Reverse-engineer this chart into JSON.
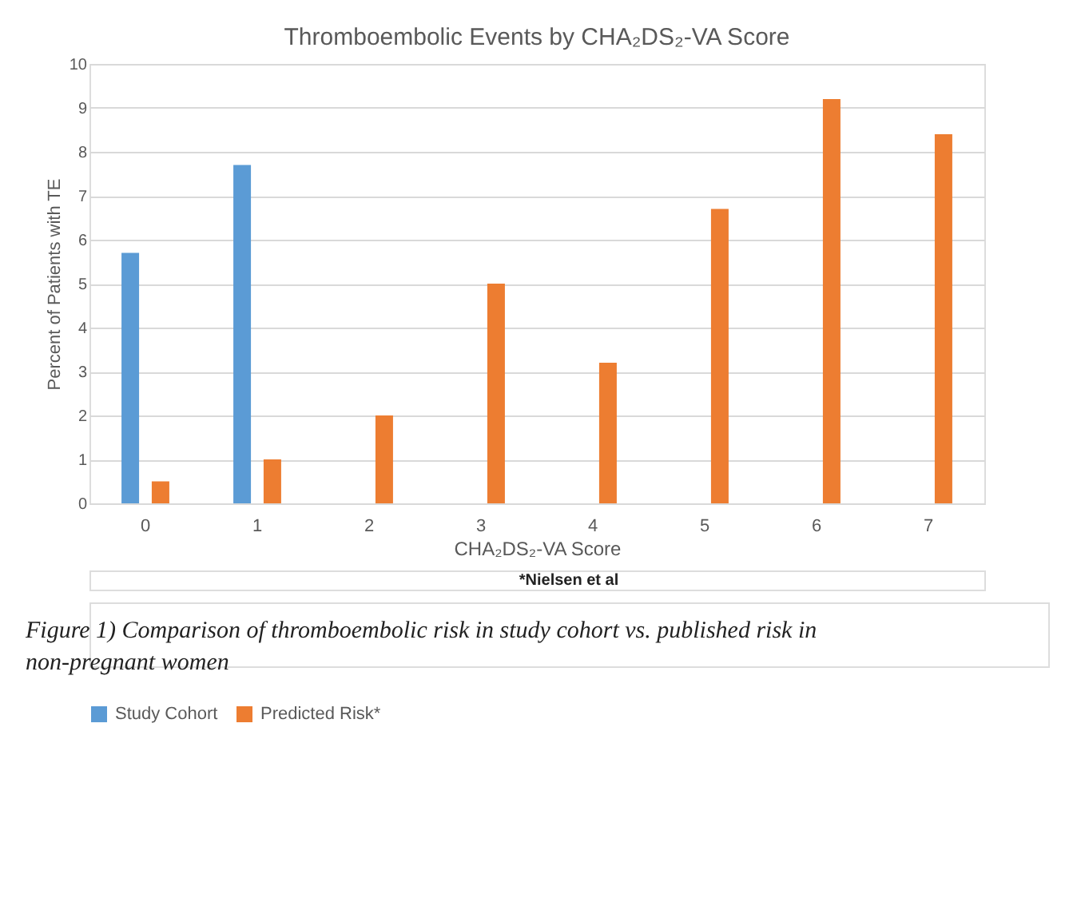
{
  "chart_data": {
    "type": "bar",
    "title": "Thromboembolic Events by CHA₂DS₂-VA Score",
    "xlabel": "CHA₂DS₂-VA Score",
    "ylabel": "Percent of Patients with TE",
    "categories": [
      "0",
      "1",
      "2",
      "3",
      "4",
      "5",
      "6",
      "7"
    ],
    "series": [
      {
        "name": "Study Cohort",
        "color": "#5b9bd5",
        "values": [
          5.7,
          7.7,
          null,
          null,
          null,
          null,
          null,
          null
        ]
      },
      {
        "name": "Predicted Risk*",
        "color": "#ed7d31",
        "values": [
          0.5,
          1.0,
          2.0,
          5.0,
          3.2,
          6.7,
          9.2,
          8.4
        ]
      }
    ],
    "ylim": [
      0,
      10
    ],
    "yticks": [
      0,
      1,
      2,
      3,
      4,
      5,
      6,
      7,
      8,
      9,
      10
    ],
    "grid": "y",
    "legend": "bottom",
    "annotations": [
      "*Nielsen et al",
      "Figure 1) Comparison of thromboembolic risk in study cohort vs. published risk in non-pregnant women"
    ]
  }
}
